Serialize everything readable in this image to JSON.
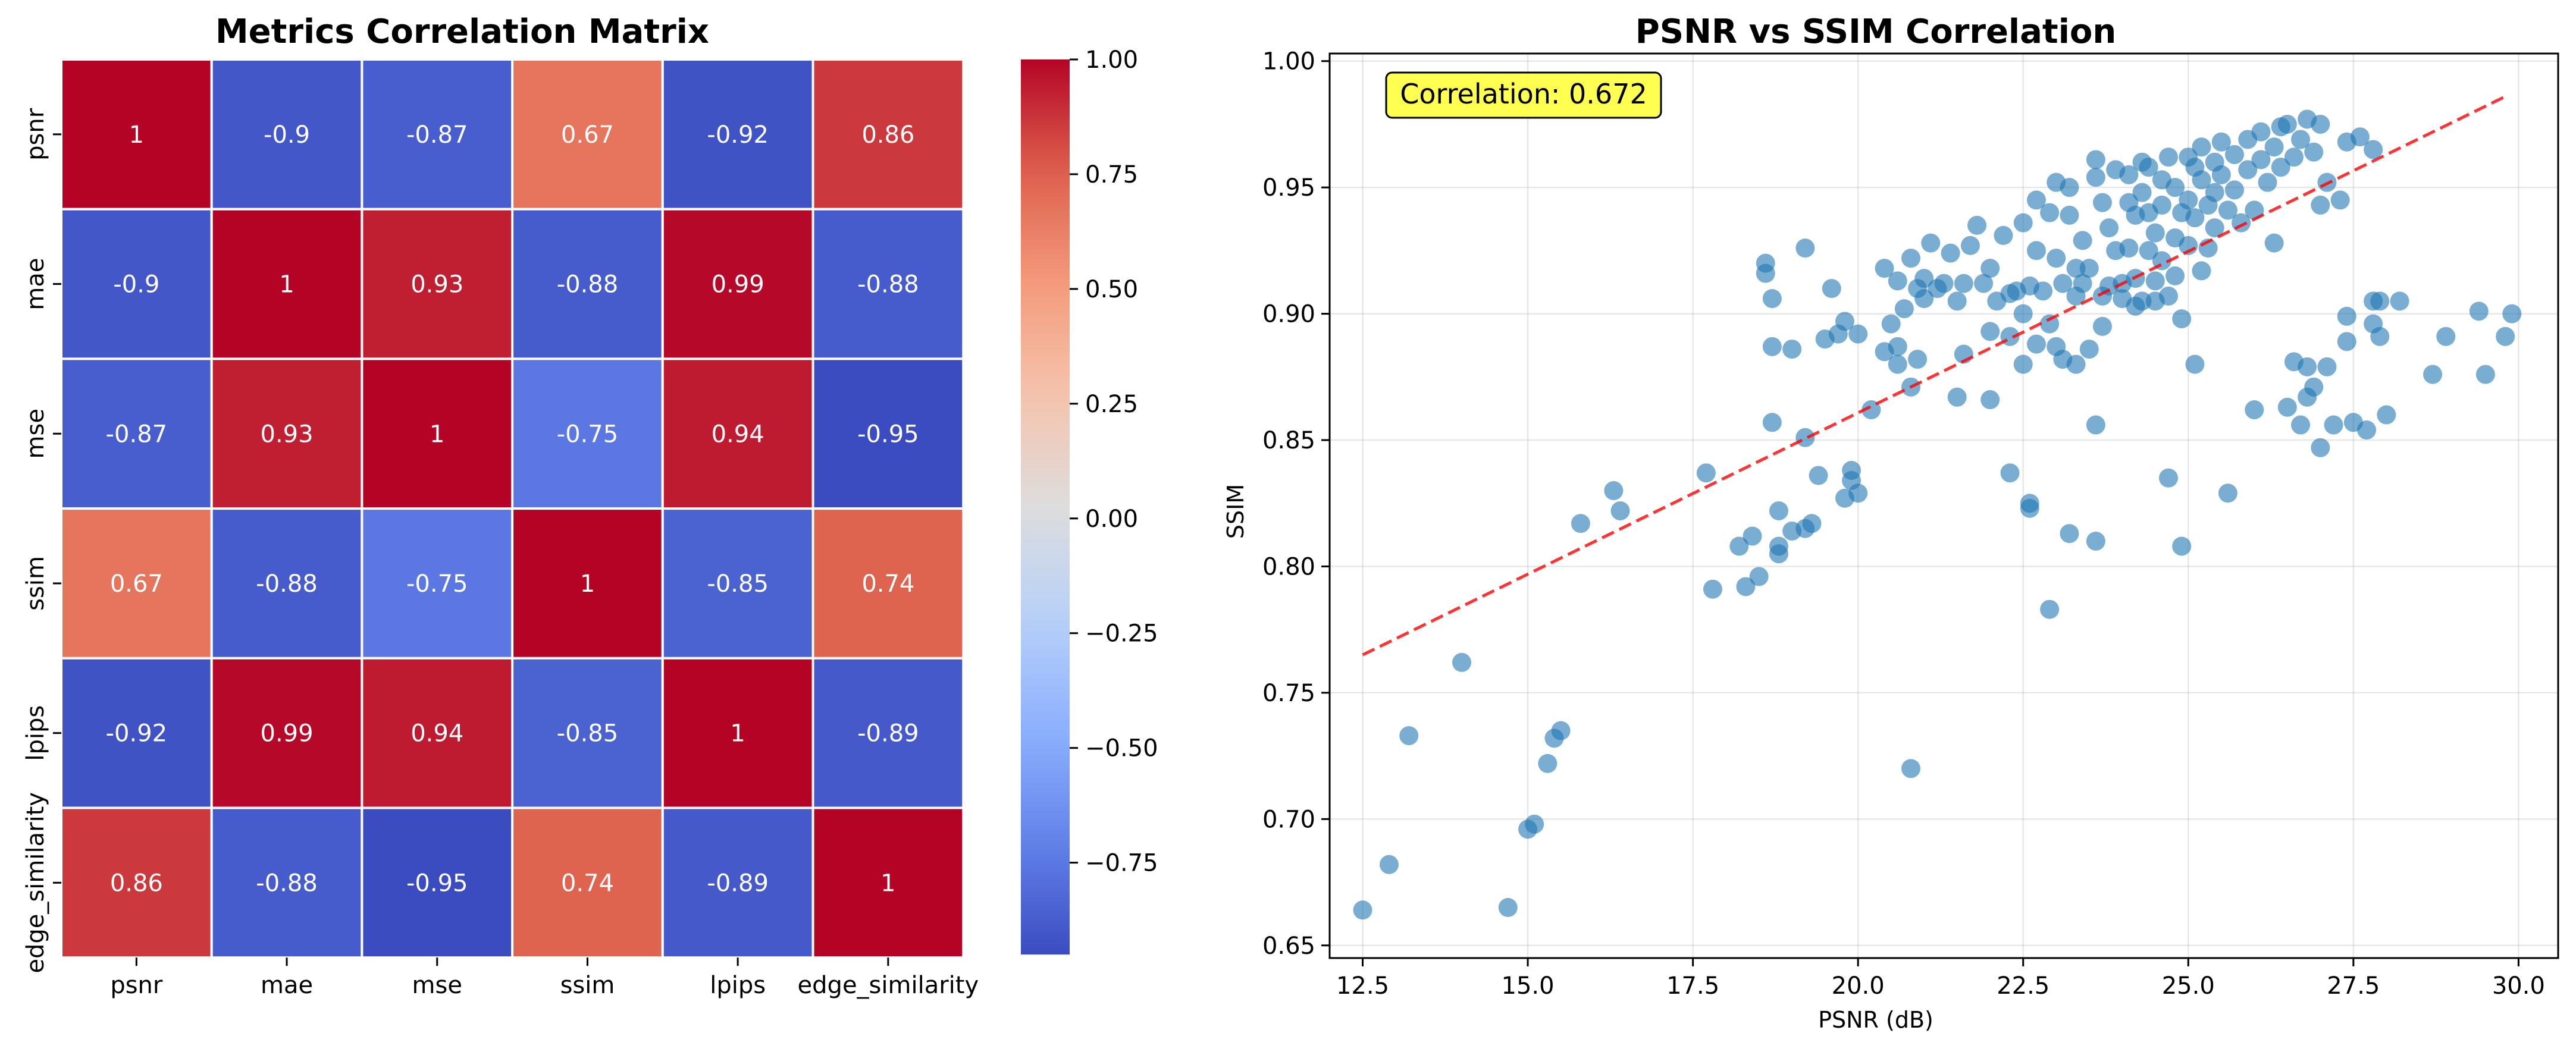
{
  "chart_data": [
    {
      "type": "heatmap",
      "title": "Metrics Correlation Matrix",
      "row_labels": [
        "psnr",
        "mae",
        "mse",
        "ssim",
        "lpips",
        "edge_similarity"
      ],
      "col_labels": [
        "psnr",
        "mae",
        "mse",
        "ssim",
        "lpips",
        "edge_similarity"
      ],
      "values": [
        [
          1,
          -0.9,
          -0.87,
          0.67,
          -0.92,
          0.86
        ],
        [
          -0.9,
          1,
          0.93,
          -0.88,
          0.99,
          -0.88
        ],
        [
          -0.87,
          0.93,
          1,
          -0.75,
          0.94,
          -0.95
        ],
        [
          0.67,
          -0.88,
          -0.75,
          1,
          -0.85,
          0.74
        ],
        [
          -0.92,
          0.99,
          0.94,
          -0.85,
          1,
          -0.89
        ],
        [
          0.86,
          -0.88,
          -0.95,
          0.74,
          -0.89,
          1
        ]
      ],
      "cell_labels": [
        [
          "1",
          "-0.9",
          "-0.87",
          "0.67",
          "-0.92",
          "0.86"
        ],
        [
          "-0.9",
          "1",
          "0.93",
          "-0.88",
          "0.99",
          "-0.88"
        ],
        [
          "-0.87",
          "0.93",
          "1",
          "-0.75",
          "0.94",
          "-0.95"
        ],
        [
          "0.67",
          "-0.88",
          "-0.75",
          "1",
          "-0.85",
          "0.74"
        ],
        [
          "-0.92",
          "0.99",
          "0.94",
          "-0.85",
          "1",
          "-0.89"
        ],
        [
          "0.86",
          "-0.88",
          "-0.95",
          "0.74",
          "-0.89",
          "1"
        ]
      ],
      "colormap": "coolwarm",
      "colorbar": {
        "range": [
          -0.95,
          1.0
        ],
        "ticks": [
          1.0,
          0.75,
          0.5,
          0.25,
          0.0,
          -0.25,
          -0.5,
          -0.75
        ],
        "tick_labels": [
          "1.00",
          "0.75",
          "0.50",
          "0.25",
          "0.00",
          "−0.25",
          "−0.50",
          "−0.75"
        ]
      }
    },
    {
      "type": "scatter",
      "title": "PSNR vs SSIM Correlation",
      "xlabel": "PSNR (dB)",
      "ylabel": "SSIM",
      "xlim": [
        12.0,
        30.6
      ],
      "ylim": [
        0.645,
        1.003
      ],
      "x_ticks": [
        12.5,
        15.0,
        17.5,
        20.0,
        22.5,
        25.0,
        27.5,
        30.0
      ],
      "x_tick_labels": [
        "12.5",
        "15.0",
        "17.5",
        "20.0",
        "22.5",
        "25.0",
        "27.5",
        "30.0"
      ],
      "y_ticks": [
        0.65,
        0.7,
        0.75,
        0.8,
        0.85,
        0.9,
        0.95,
        1.0
      ],
      "y_tick_labels": [
        "0.65",
        "0.70",
        "0.75",
        "0.80",
        "0.85",
        "0.90",
        "0.95",
        "1.00"
      ],
      "grid": true,
      "annotation": "Correlation: 0.672",
      "trendline": {
        "x": [
          12.5,
          29.8
        ],
        "y": [
          0.765,
          0.986
        ]
      },
      "colors": {
        "points": "#1f77b4",
        "trend": "#ff0000",
        "annotation_bg": "#ffff33"
      },
      "series": [
        {
          "points": [
            [
              12.5,
              0.664
            ],
            [
              12.9,
              0.682
            ],
            [
              13.2,
              0.733
            ],
            [
              14.0,
              0.762
            ],
            [
              14.7,
              0.665
            ],
            [
              15.0,
              0.696
            ],
            [
              15.1,
              0.698
            ],
            [
              15.3,
              0.722
            ],
            [
              15.4,
              0.732
            ],
            [
              15.5,
              0.735
            ],
            [
              15.8,
              0.817
            ],
            [
              16.3,
              0.83
            ],
            [
              16.4,
              0.822
            ],
            [
              17.7,
              0.837
            ],
            [
              17.8,
              0.791
            ],
            [
              18.2,
              0.808
            ],
            [
              18.3,
              0.792
            ],
            [
              18.4,
              0.812
            ],
            [
              18.5,
              0.796
            ],
            [
              18.6,
              0.916
            ],
            [
              18.6,
              0.92
            ],
            [
              18.7,
              0.906
            ],
            [
              18.7,
              0.887
            ],
            [
              18.7,
              0.857
            ],
            [
              18.8,
              0.805
            ],
            [
              18.8,
              0.808
            ],
            [
              18.8,
              0.822
            ],
            [
              19.0,
              0.886
            ],
            [
              19.0,
              0.814
            ],
            [
              19.2,
              0.926
            ],
            [
              19.2,
              0.851
            ],
            [
              19.2,
              0.815
            ],
            [
              19.3,
              0.817
            ],
            [
              19.4,
              0.836
            ],
            [
              19.5,
              0.89
            ],
            [
              19.6,
              0.91
            ],
            [
              19.7,
              0.892
            ],
            [
              19.8,
              0.897
            ],
            [
              19.8,
              0.827
            ],
            [
              19.9,
              0.838
            ],
            [
              19.9,
              0.834
            ],
            [
              20.0,
              0.829
            ],
            [
              20.0,
              0.892
            ],
            [
              20.2,
              0.862
            ],
            [
              20.4,
              0.918
            ],
            [
              20.4,
              0.885
            ],
            [
              20.5,
              0.896
            ],
            [
              20.6,
              0.913
            ],
            [
              20.6,
              0.887
            ],
            [
              20.6,
              0.88
            ],
            [
              20.7,
              0.902
            ],
            [
              20.8,
              0.922
            ],
            [
              20.8,
              0.72
            ],
            [
              20.8,
              0.871
            ],
            [
              20.9,
              0.882
            ],
            [
              20.9,
              0.91
            ],
            [
              21.0,
              0.906
            ],
            [
              21.0,
              0.914
            ],
            [
              21.1,
              0.928
            ],
            [
              21.2,
              0.91
            ],
            [
              21.3,
              0.912
            ],
            [
              21.4,
              0.924
            ],
            [
              21.5,
              0.867
            ],
            [
              21.5,
              0.905
            ],
            [
              21.6,
              0.912
            ],
            [
              21.6,
              0.884
            ],
            [
              21.7,
              0.927
            ],
            [
              21.8,
              0.935
            ],
            [
              21.9,
              0.912
            ],
            [
              22.0,
              0.866
            ],
            [
              22.0,
              0.893
            ],
            [
              22.0,
              0.918
            ],
            [
              22.1,
              0.905
            ],
            [
              22.2,
              0.931
            ],
            [
              22.3,
              0.908
            ],
            [
              22.3,
              0.891
            ],
            [
              22.3,
              0.837
            ],
            [
              22.4,
              0.909
            ],
            [
              22.5,
              0.88
            ],
            [
              22.5,
              0.9
            ],
            [
              22.5,
              0.936
            ],
            [
              22.6,
              0.911
            ],
            [
              22.6,
              0.825
            ],
            [
              22.6,
              0.823
            ],
            [
              22.7,
              0.888
            ],
            [
              22.7,
              0.925
            ],
            [
              22.7,
              0.945
            ],
            [
              22.8,
              0.909
            ],
            [
              22.9,
              0.94
            ],
            [
              22.9,
              0.896
            ],
            [
              22.9,
              0.783
            ],
            [
              23.0,
              0.887
            ],
            [
              23.0,
              0.922
            ],
            [
              23.0,
              0.952
            ],
            [
              23.1,
              0.912
            ],
            [
              23.1,
              0.882
            ],
            [
              23.2,
              0.95
            ],
            [
              23.2,
              0.939
            ],
            [
              23.2,
              0.813
            ],
            [
              23.3,
              0.918
            ],
            [
              23.3,
              0.907
            ],
            [
              23.3,
              0.88
            ],
            [
              23.4,
              0.929
            ],
            [
              23.4,
              0.912
            ],
            [
              23.5,
              0.886
            ],
            [
              23.5,
              0.918
            ],
            [
              23.6,
              0.856
            ],
            [
              23.6,
              0.81
            ],
            [
              23.6,
              0.961
            ],
            [
              23.6,
              0.954
            ],
            [
              23.7,
              0.944
            ],
            [
              23.7,
              0.907
            ],
            [
              23.7,
              0.895
            ],
            [
              23.8,
              0.911
            ],
            [
              23.8,
              0.934
            ],
            [
              23.9,
              0.925
            ],
            [
              23.9,
              0.957
            ],
            [
              24.0,
              0.912
            ],
            [
              24.0,
              0.906
            ],
            [
              24.1,
              0.944
            ],
            [
              24.1,
              0.926
            ],
            [
              24.1,
              0.955
            ],
            [
              24.2,
              0.939
            ],
            [
              24.2,
              0.914
            ],
            [
              24.2,
              0.903
            ],
            [
              24.3,
              0.96
            ],
            [
              24.3,
              0.948
            ],
            [
              24.3,
              0.905
            ],
            [
              24.4,
              0.925
            ],
            [
              24.4,
              0.94
            ],
            [
              24.4,
              0.958
            ],
            [
              24.5,
              0.913
            ],
            [
              24.5,
              0.932
            ],
            [
              24.5,
              0.905
            ],
            [
              24.6,
              0.953
            ],
            [
              24.6,
              0.943
            ],
            [
              24.6,
              0.921
            ],
            [
              24.7,
              0.907
            ],
            [
              24.7,
              0.835
            ],
            [
              24.7,
              0.962
            ],
            [
              24.8,
              0.93
            ],
            [
              24.8,
              0.95
            ],
            [
              24.8,
              0.915
            ],
            [
              24.9,
              0.94
            ],
            [
              24.9,
              0.898
            ],
            [
              24.9,
              0.808
            ],
            [
              25.0,
              0.962
            ],
            [
              25.0,
              0.945
            ],
            [
              25.0,
              0.927
            ],
            [
              25.1,
              0.958
            ],
            [
              25.1,
              0.938
            ],
            [
              25.1,
              0.88
            ],
            [
              25.2,
              0.953
            ],
            [
              25.2,
              0.966
            ],
            [
              25.2,
              0.917
            ],
            [
              25.3,
              0.943
            ],
            [
              25.3,
              0.926
            ],
            [
              25.4,
              0.96
            ],
            [
              25.4,
              0.948
            ],
            [
              25.4,
              0.934
            ],
            [
              25.5,
              0.968
            ],
            [
              25.5,
              0.955
            ],
            [
              25.6,
              0.941
            ],
            [
              25.6,
              0.829
            ],
            [
              25.7,
              0.963
            ],
            [
              25.7,
              0.949
            ],
            [
              25.8,
              0.936
            ],
            [
              25.9,
              0.969
            ],
            [
              25.9,
              0.957
            ],
            [
              26.0,
              0.862
            ],
            [
              26.0,
              0.941
            ],
            [
              26.1,
              0.972
            ],
            [
              26.1,
              0.961
            ],
            [
              26.2,
              0.952
            ],
            [
              26.3,
              0.928
            ],
            [
              26.3,
              0.966
            ],
            [
              26.4,
              0.974
            ],
            [
              26.4,
              0.958
            ],
            [
              26.5,
              0.863
            ],
            [
              26.5,
              0.975
            ],
            [
              26.6,
              0.962
            ],
            [
              26.6,
              0.881
            ],
            [
              26.7,
              0.969
            ],
            [
              26.7,
              0.856
            ],
            [
              26.8,
              0.977
            ],
            [
              26.8,
              0.879
            ],
            [
              26.8,
              0.867
            ],
            [
              26.9,
              0.964
            ],
            [
              26.9,
              0.871
            ],
            [
              27.0,
              0.975
            ],
            [
              27.0,
              0.943
            ],
            [
              27.0,
              0.847
            ],
            [
              27.1,
              0.952
            ],
            [
              27.1,
              0.879
            ],
            [
              27.2,
              0.856
            ],
            [
              27.3,
              0.945
            ],
            [
              27.4,
              0.899
            ],
            [
              27.4,
              0.889
            ],
            [
              27.4,
              0.968
            ],
            [
              27.5,
              0.857
            ],
            [
              27.6,
              0.97
            ],
            [
              27.7,
              0.854
            ],
            [
              27.8,
              0.965
            ],
            [
              27.8,
              0.905
            ],
            [
              27.8,
              0.896
            ],
            [
              27.9,
              0.891
            ],
            [
              27.9,
              0.905
            ],
            [
              28.0,
              0.86
            ],
            [
              28.2,
              0.905
            ],
            [
              28.7,
              0.876
            ],
            [
              28.9,
              0.891
            ],
            [
              29.4,
              0.901
            ],
            [
              29.5,
              0.876
            ],
            [
              29.8,
              0.891
            ],
            [
              29.9,
              0.9
            ]
          ]
        }
      ]
    }
  ]
}
